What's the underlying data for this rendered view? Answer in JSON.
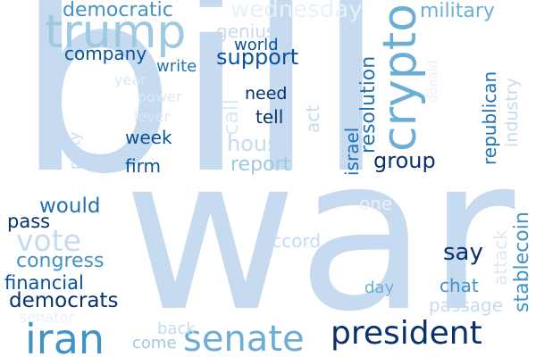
{
  "palette": {
    "bg": "#ffffff",
    "c1": "#c6dbef",
    "c2": "#9ecae1",
    "c3": "#6baed6",
    "c4": "#4292c6",
    "c5": "#2171b5",
    "c6": "#08519c",
    "c7": "#08306b",
    "c8": "#dbe9f6",
    "c9": "#e8f1fa"
  },
  "words": [
    {
      "key": "bill",
      "text": "bill",
      "color": "c1"
    },
    {
      "key": "war",
      "text": "war",
      "color": "c1"
    },
    {
      "key": "trump",
      "text": "trump",
      "color": "c2"
    },
    {
      "key": "iran",
      "text": "iran",
      "color": "c4"
    },
    {
      "key": "senate",
      "text": "senate",
      "color": "c3"
    },
    {
      "key": "president",
      "text": "president",
      "color": "c7"
    },
    {
      "key": "crypto",
      "text": "crypto",
      "color": "c3"
    },
    {
      "key": "vote",
      "text": "vote",
      "color": "c1"
    },
    {
      "key": "wednesday",
      "text": "wednesday",
      "color": "c9"
    },
    {
      "key": "democratic",
      "text": "democratic",
      "color": "c4"
    },
    {
      "key": "military",
      "text": "military",
      "color": "c3"
    },
    {
      "key": "resolution",
      "text": "resolution",
      "color": "c5"
    },
    {
      "key": "company",
      "text": "company",
      "color": "c6"
    },
    {
      "key": "support",
      "text": "support",
      "color": "c6"
    },
    {
      "key": "genius",
      "text": "genius",
      "color": "c1"
    },
    {
      "key": "world",
      "text": "world",
      "color": "c6"
    },
    {
      "key": "write",
      "text": "write",
      "color": "c5"
    },
    {
      "key": "republican",
      "text": "republican",
      "color": "c5"
    },
    {
      "key": "industry",
      "text": "industry",
      "color": "c1"
    },
    {
      "key": "year",
      "text": "year",
      "color": "c8"
    },
    {
      "key": "power",
      "text": "power",
      "color": "c8"
    },
    {
      "key": "need",
      "text": "need",
      "color": "c7"
    },
    {
      "key": "lever",
      "text": "lever",
      "color": "c8"
    },
    {
      "key": "tell",
      "text": "tell",
      "color": "c7"
    },
    {
      "key": "call",
      "text": "call",
      "color": "c8"
    },
    {
      "key": "act",
      "text": "act",
      "color": "c1"
    },
    {
      "key": "israel",
      "text": "israel",
      "color": "c5"
    },
    {
      "key": "party",
      "text": "party",
      "color": "c1"
    },
    {
      "key": "week",
      "text": "week",
      "color": "c6"
    },
    {
      "key": "house",
      "text": "house",
      "color": "c1"
    },
    {
      "key": "group",
      "text": "group",
      "color": "c7"
    },
    {
      "key": "firm",
      "text": "firm",
      "color": "c6"
    },
    {
      "key": "report",
      "text": "report",
      "color": "c2"
    },
    {
      "key": "donald",
      "text": "donald",
      "color": "c9"
    },
    {
      "key": "would",
      "text": "would",
      "color": "c5"
    },
    {
      "key": "one",
      "text": "one",
      "color": "c9"
    },
    {
      "key": "pass",
      "text": "pass",
      "color": "c7"
    },
    {
      "key": "stablecoin",
      "text": "stablecoin",
      "color": "c4"
    },
    {
      "key": "accord",
      "text": "accord",
      "color": "c1"
    },
    {
      "key": "say",
      "text": "say",
      "color": "c7"
    },
    {
      "key": "attack",
      "text": "attack",
      "color": "c8"
    },
    {
      "key": "congress",
      "text": "congress",
      "color": "c4"
    },
    {
      "key": "financial",
      "text": "financial",
      "color": "c6"
    },
    {
      "key": "day",
      "text": "day",
      "color": "c3"
    },
    {
      "key": "chat",
      "text": "chat",
      "color": "c4"
    },
    {
      "key": "democrats",
      "text": "democrats",
      "color": "c7"
    },
    {
      "key": "passage",
      "text": "passage",
      "color": "c1"
    },
    {
      "key": "senator",
      "text": "senator",
      "color": "c9"
    },
    {
      "key": "back",
      "text": "back",
      "color": "c1"
    },
    {
      "key": "come",
      "text": "come",
      "color": "c2"
    }
  ]
}
